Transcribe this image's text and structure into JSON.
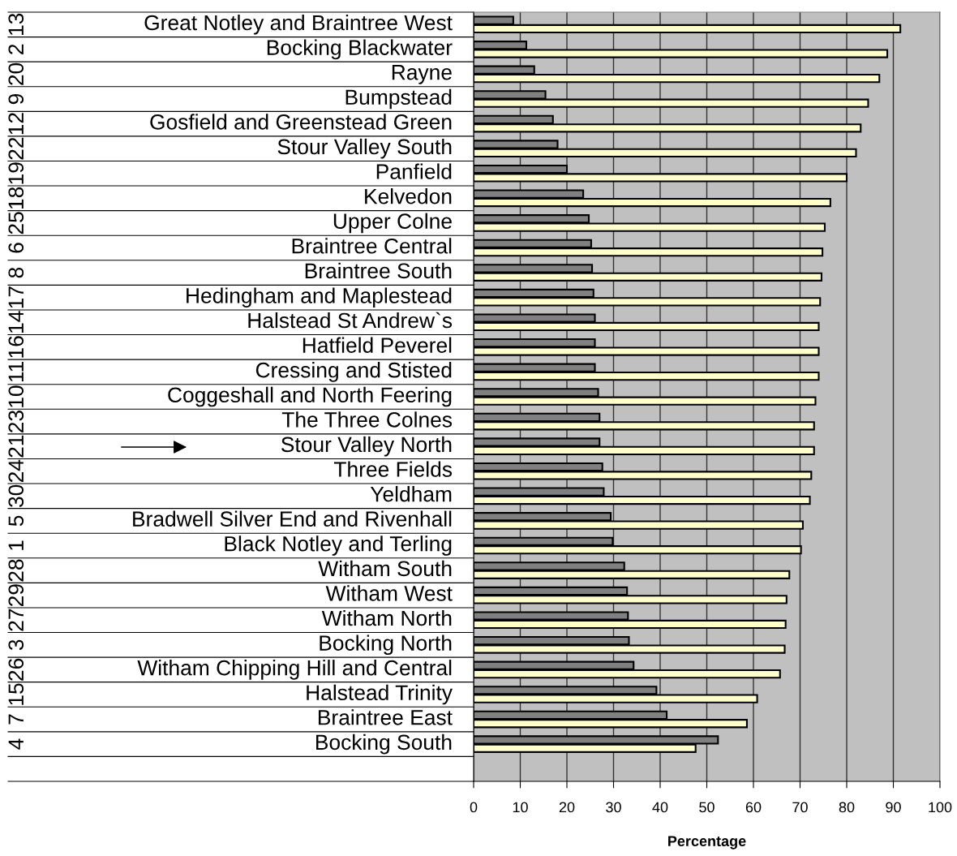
{
  "chart_data": {
    "type": "bar",
    "orientation": "horizontal",
    "xlabel": "Percentage",
    "categories": [
      "Great Notley and Braintree West",
      "Bocking Blackwater",
      "Rayne",
      "Bumpstead",
      "Gosfield and Greenstead Green",
      "Stour Valley South",
      "Panfield",
      "Kelvedon",
      "Upper Colne",
      "Braintree Central",
      "Braintree South",
      "Hedingham and Maplestead",
      "Halstead St Andrew`s",
      "Hatfield Peverel",
      "Cressing and Stisted",
      "Coggeshall and North Feering",
      "The Three Colnes",
      "Stour Valley North",
      "Three Fields",
      "Yeldham",
      "Bradwell Silver End and Rivenhall",
      "Black Notley and Terling",
      "Witham South",
      "Witham West",
      "Witham North",
      "Bocking North",
      "Witham Chipping Hill and Central",
      "Halstead Trinity",
      "Braintree East",
      "Bocking South",
      null
    ],
    "y2_categories": [
      "13",
      "2",
      "20",
      "9",
      "12",
      "22",
      "19",
      "18",
      "25",
      "6",
      "8",
      "17",
      "14",
      "16",
      "11",
      "10",
      "23",
      "21",
      "24",
      "30",
      "5",
      "1",
      "28",
      "29",
      "27",
      "3",
      "26",
      "15",
      "7",
      "4",
      null
    ],
    "series": [
      {
        "color": "#808080",
        "values": [
          8.5,
          11.3,
          13,
          15.4,
          17,
          18,
          20,
          23.5,
          24.7,
          25.2,
          25.4,
          25.7,
          26,
          26,
          26,
          26.7,
          27,
          27,
          27.6,
          27.9,
          29.4,
          29.8,
          32.3,
          32.9,
          33.1,
          33.3,
          34.3,
          39.2,
          41.4,
          52.4,
          null
        ]
      },
      {
        "color": "#ffffcc",
        "values": [
          91.5,
          88.7,
          87,
          84.6,
          83,
          82,
          80,
          76.5,
          75.3,
          74.8,
          74.6,
          74.3,
          74,
          74,
          74,
          73.3,
          73,
          73,
          72.4,
          72.1,
          70.6,
          70.2,
          67.7,
          67.1,
          66.9,
          66.7,
          65.7,
          60.8,
          58.6,
          47.6,
          null
        ]
      }
    ],
    "xlim": [
      0,
      100
    ],
    "xticks": [
      0,
      10,
      20,
      30,
      40,
      50,
      60,
      70,
      80,
      90,
      100
    ],
    "grid": "x",
    "legend": false
  }
}
